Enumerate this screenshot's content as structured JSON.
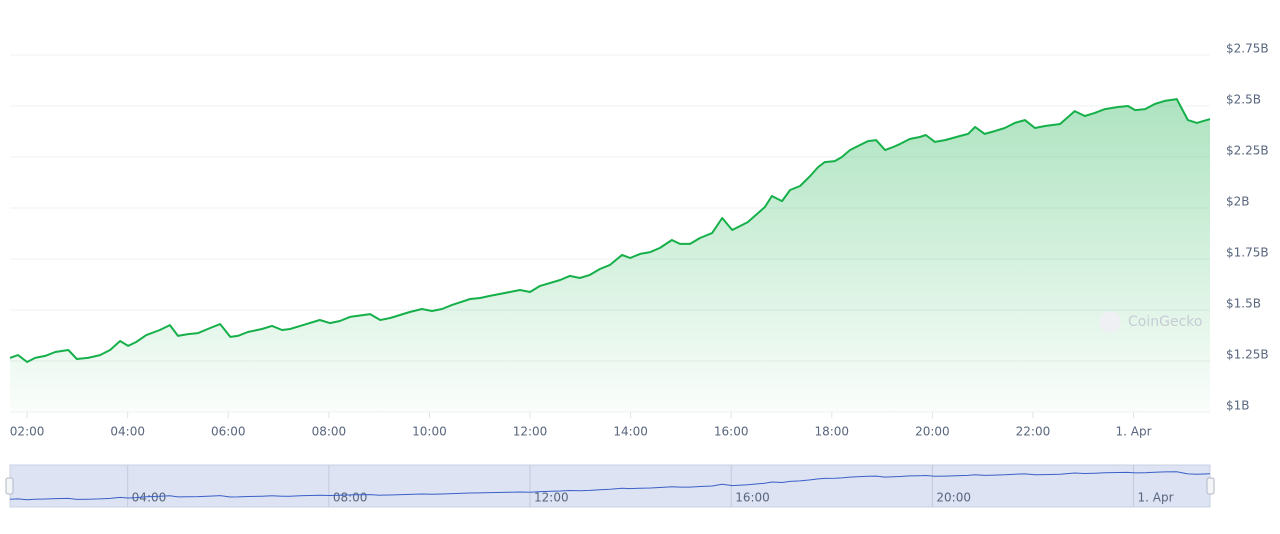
{
  "chart_data": {
    "type": "area",
    "color": "#16b04a",
    "navigator_color": "#3a5fc8",
    "grid": true,
    "watermark": "CoinGecko",
    "x": [
      1.66,
      1.82,
      2.0,
      2.16,
      2.36,
      2.56,
      2.82,
      2.99,
      3.21,
      3.45,
      3.65,
      3.85,
      4.01,
      4.17,
      4.37,
      4.64,
      4.84,
      5.0,
      5.2,
      5.4,
      5.64,
      5.84,
      6.04,
      6.19,
      6.39,
      6.67,
      6.87,
      7.07,
      7.23,
      7.43,
      7.82,
      8.02,
      8.22,
      8.42,
      8.82,
      9.02,
      9.22,
      9.61,
      9.85,
      10.05,
      10.25,
      10.45,
      10.81,
      11.01,
      11.2,
      11.6,
      11.8,
      12.0,
      12.2,
      12.6,
      12.79,
      12.99,
      13.19,
      13.39,
      13.59,
      13.83,
      13.99,
      14.19,
      14.39,
      14.58,
      14.82,
      14.98,
      15.18,
      15.38,
      15.62,
      15.82,
      16.02,
      16.33,
      16.67,
      16.81,
      17.01,
      17.17,
      17.37,
      17.57,
      17.73,
      17.86,
      18.06,
      18.2,
      18.36,
      18.56,
      18.72,
      18.88,
      19.06,
      19.22,
      19.36,
      19.55,
      19.75,
      19.87,
      20.05,
      20.25,
      20.55,
      20.71,
      20.85,
      21.04,
      21.24,
      21.44,
      21.64,
      21.84,
      22.04,
      22.24,
      22.54,
      22.83,
      23.03,
      23.23,
      23.43,
      23.69,
      23.89,
      24.03,
      24.23,
      24.42,
      24.62,
      24.86,
      25.08,
      25.26,
      25.52
    ],
    "values": [
      1.265,
      1.279,
      1.245,
      1.265,
      1.275,
      1.294,
      1.304,
      1.26,
      1.265,
      1.279,
      1.304,
      1.348,
      1.324,
      1.343,
      1.377,
      1.402,
      1.426,
      1.373,
      1.382,
      1.387,
      1.412,
      1.431,
      1.368,
      1.373,
      1.392,
      1.407,
      1.422,
      1.402,
      1.407,
      1.422,
      1.451,
      1.436,
      1.446,
      1.466,
      1.48,
      1.451,
      1.461,
      1.49,
      1.505,
      1.495,
      1.505,
      1.525,
      1.554,
      1.559,
      1.569,
      1.588,
      1.598,
      1.588,
      1.618,
      1.647,
      1.667,
      1.657,
      1.672,
      1.701,
      1.721,
      1.77,
      1.755,
      1.775,
      1.784,
      1.804,
      1.843,
      1.824,
      1.824,
      1.853,
      1.877,
      1.951,
      1.892,
      1.931,
      2.005,
      2.059,
      2.034,
      2.088,
      2.108,
      2.157,
      2.201,
      2.225,
      2.23,
      2.25,
      2.284,
      2.309,
      2.328,
      2.333,
      2.284,
      2.299,
      2.314,
      2.338,
      2.348,
      2.358,
      2.324,
      2.333,
      2.353,
      2.363,
      2.397,
      2.363,
      2.377,
      2.392,
      2.417,
      2.431,
      2.392,
      2.402,
      2.412,
      2.475,
      2.451,
      2.466,
      2.485,
      2.495,
      2.5,
      2.48,
      2.485,
      2.51,
      2.525,
      2.534,
      2.431,
      2.417,
      2.436
    ],
    "xlim": [
      1.66,
      25.52
    ],
    "xticks": [
      {
        "value": 2,
        "label": "02:00"
      },
      {
        "value": 4,
        "label": "04:00"
      },
      {
        "value": 6,
        "label": "06:00"
      },
      {
        "value": 8,
        "label": "08:00"
      },
      {
        "value": 10,
        "label": "10:00"
      },
      {
        "value": 12,
        "label": "12:00"
      },
      {
        "value": 14,
        "label": "14:00"
      },
      {
        "value": 16,
        "label": "16:00"
      },
      {
        "value": 18,
        "label": "18:00"
      },
      {
        "value": 20,
        "label": "20:00"
      },
      {
        "value": 22,
        "label": "22:00"
      },
      {
        "value": 24,
        "label": "1. Apr"
      }
    ],
    "ylim": [
      1,
      2.75
    ],
    "yticks": [
      {
        "value": 1,
        "label": "$1B"
      },
      {
        "value": 1.25,
        "label": "$1.25B"
      },
      {
        "value": 1.5,
        "label": "$1.5B"
      },
      {
        "value": 1.75,
        "label": "$1.75B"
      },
      {
        "value": 2,
        "label": "$2B"
      },
      {
        "value": 2.25,
        "label": "$2.25B"
      },
      {
        "value": 2.5,
        "label": "$2.5B"
      },
      {
        "value": 2.75,
        "label": "$2.75B"
      }
    ],
    "navigator_xticks": [
      {
        "value": 4,
        "label": "04:00"
      },
      {
        "value": 8,
        "label": "08:00"
      },
      {
        "value": 12,
        "label": "12:00"
      },
      {
        "value": 16,
        "label": "16:00"
      },
      {
        "value": 20,
        "label": "20:00"
      },
      {
        "value": 24,
        "label": "1. Apr"
      }
    ]
  }
}
